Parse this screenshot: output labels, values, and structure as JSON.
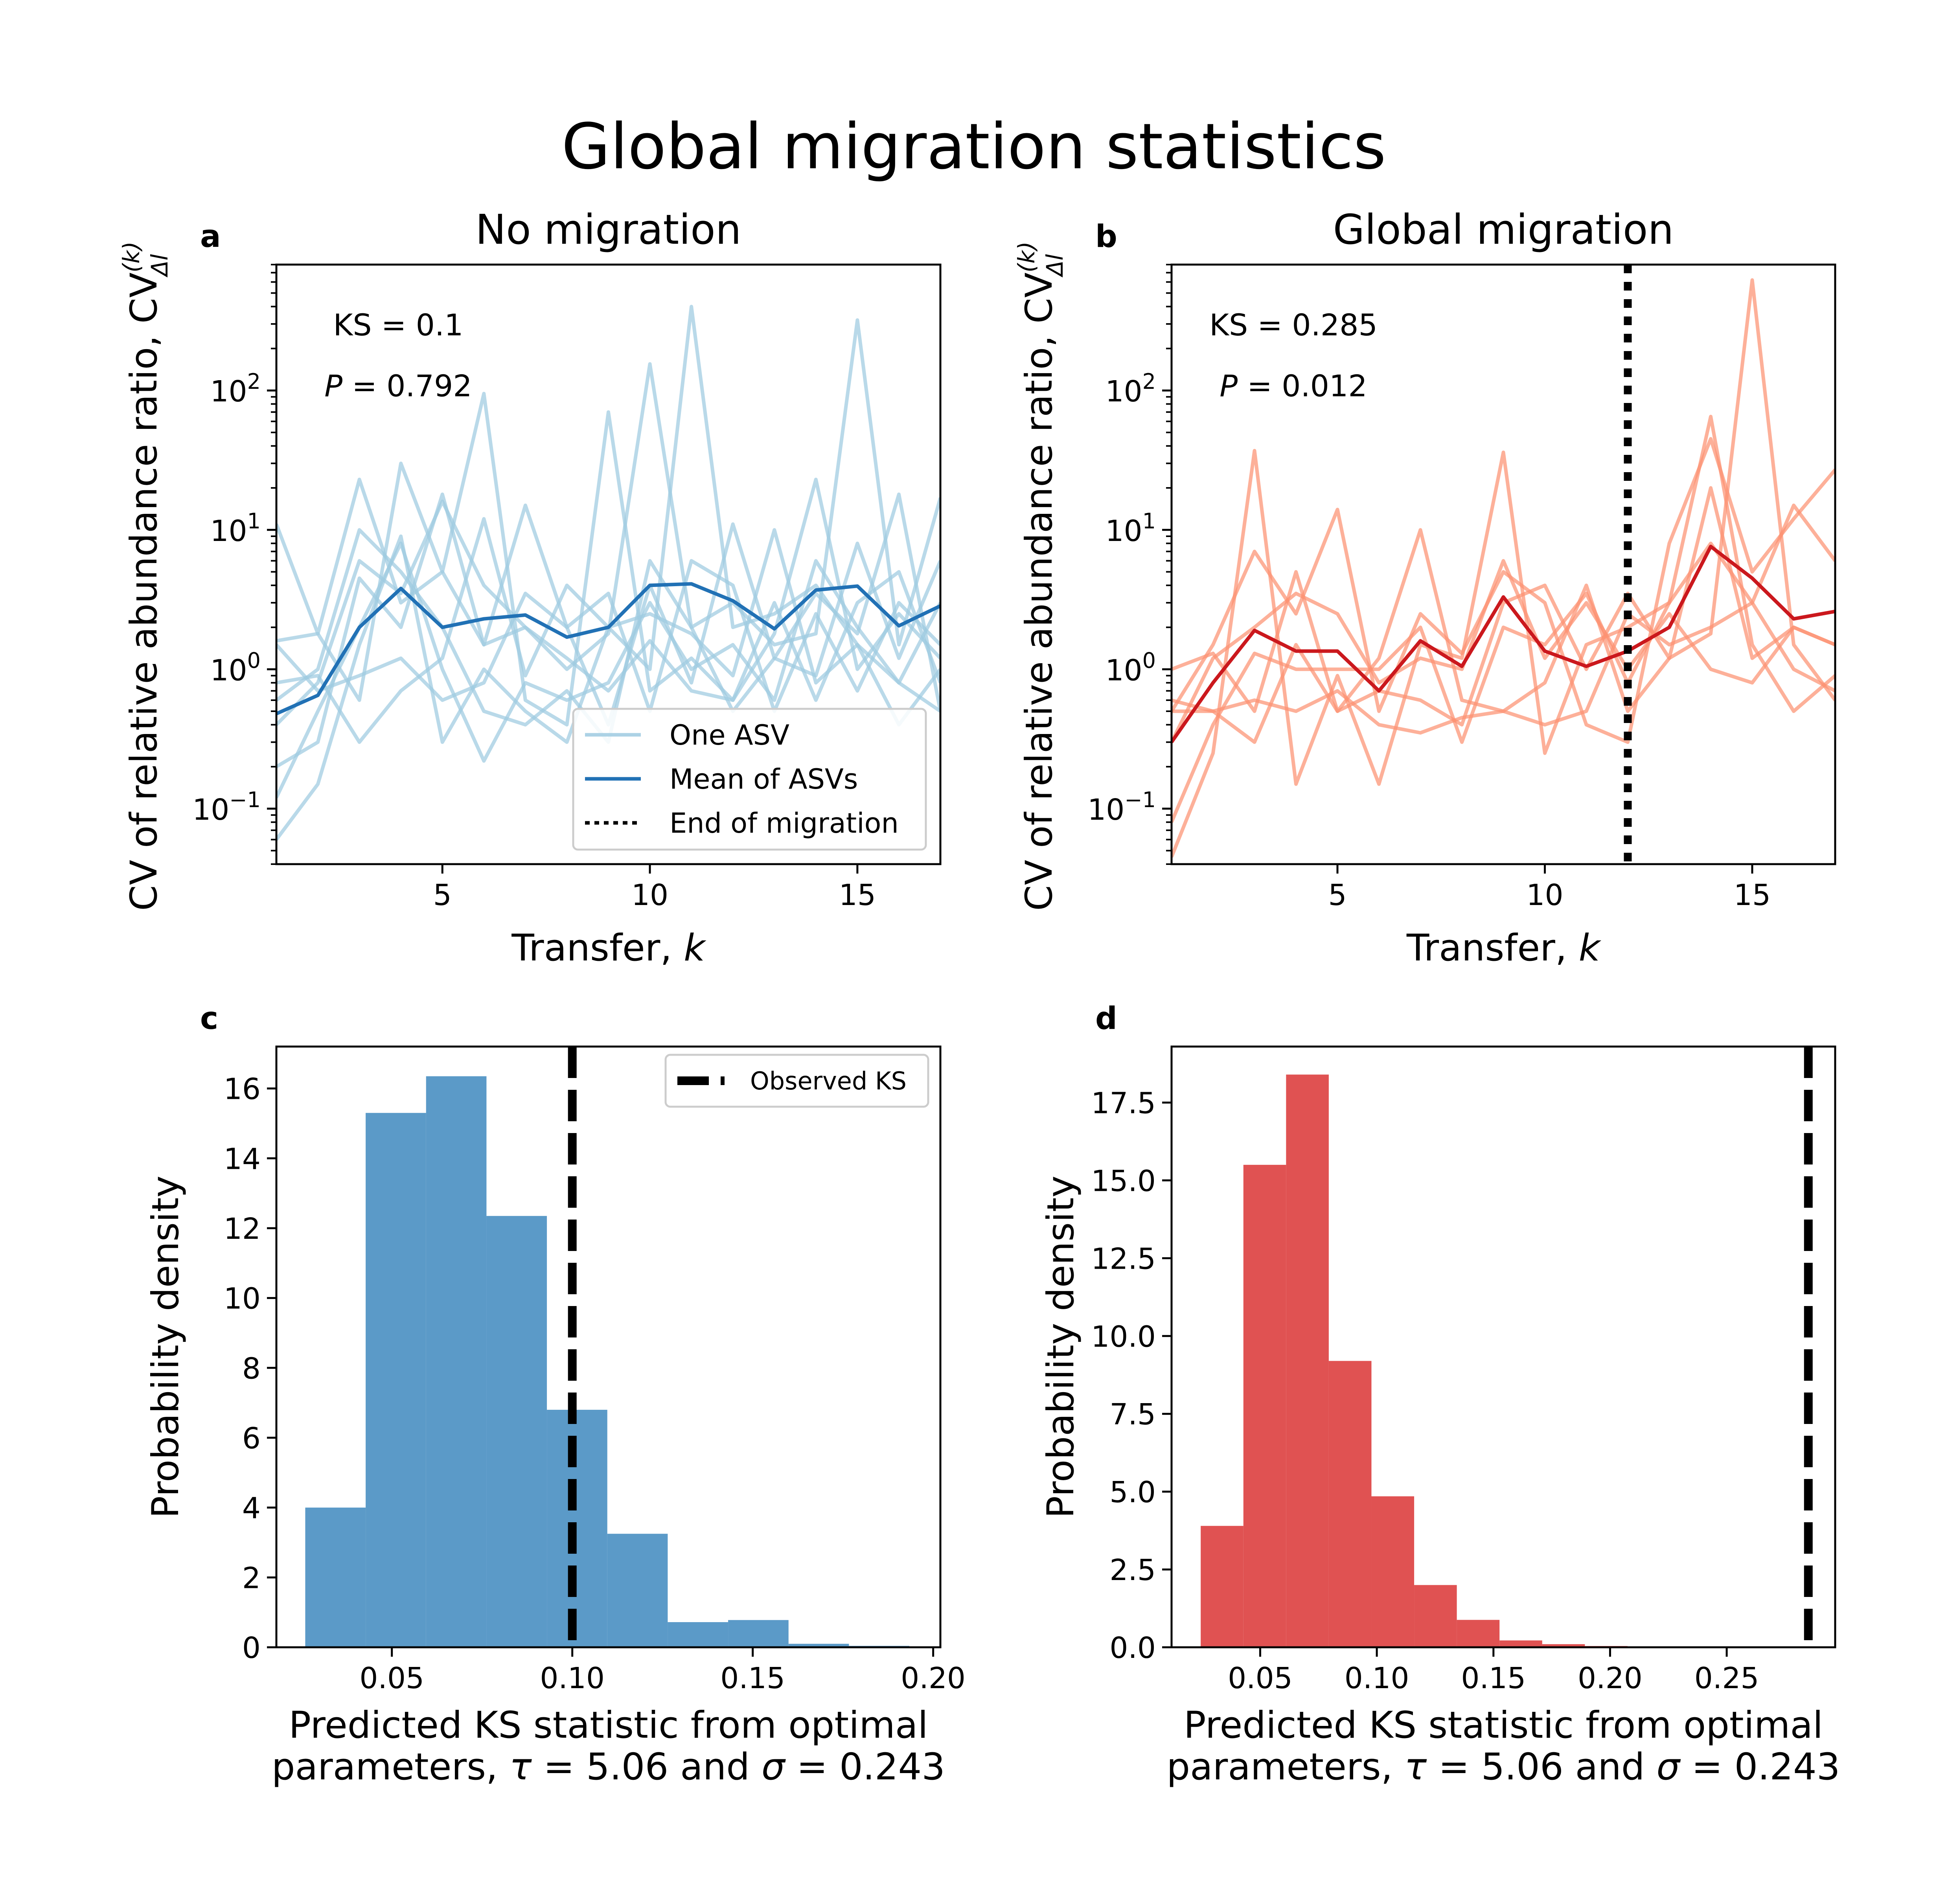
{
  "figure": {
    "title": "Global migration statistics"
  },
  "chart_data": [
    {
      "id": "a",
      "panel_label": "a",
      "type": "line",
      "title": "No migration",
      "xlabel": "Transfer, k",
      "ylabel": "CV of relative abundance ratio, CV",
      "y_scale": "log",
      "xlim": [
        1,
        17
      ],
      "ylim": [
        0.04,
        800
      ],
      "x_ticks": [
        5,
        10,
        15
      ],
      "y_ticks": [
        {
          "value": 0.1,
          "label": "10",
          "exp": "−1"
        },
        {
          "value": 1,
          "label": "10",
          "exp": "0"
        },
        {
          "value": 10,
          "label": "10",
          "exp": "1"
        },
        {
          "value": 100,
          "label": "10",
          "exp": "2"
        }
      ],
      "annotations": [
        "KS = 0.1",
        "P = 0.792"
      ],
      "colors": {
        "light": "#9ecae1",
        "dark": "#2171b5"
      },
      "x": [
        1,
        2,
        3,
        4,
        5,
        6,
        7,
        8,
        9,
        10,
        11,
        12,
        13,
        14,
        15,
        16,
        17
      ],
      "series_light": [
        [
          11,
          1.8,
          23,
          3,
          5,
          1.5,
          2,
          1,
          1.8,
          155,
          2,
          3,
          1.5,
          1.8,
          320,
          1.5,
          17
        ],
        [
          0.06,
          0.15,
          1.5,
          9,
          0.3,
          1,
          0.5,
          0.3,
          2,
          1,
          400,
          2,
          2.5,
          4,
          1.5,
          0.4,
          1
        ],
        [
          1.6,
          1.8,
          0.6,
          30,
          5,
          95,
          0.6,
          0.4,
          70,
          0.7,
          1.2,
          0.6,
          1.8,
          23,
          1,
          2.5,
          1.2
        ],
        [
          0.2,
          0.3,
          4.5,
          2,
          18,
          1.5,
          15,
          2,
          0.4,
          4,
          0.8,
          11,
          1.2,
          3.5,
          1.8,
          18,
          0.5
        ],
        [
          0.8,
          0.9,
          0.3,
          0.7,
          1.2,
          12,
          0.9,
          4,
          2,
          2.5,
          1.8,
          0.9,
          10,
          0.8,
          1.5,
          0.8,
          3
        ],
        [
          0.6,
          1,
          10,
          5,
          2,
          0.5,
          0.4,
          0.7,
          0.3,
          6,
          2,
          0.5,
          1.2,
          0.9,
          8,
          1.2,
          6
        ],
        [
          0.12,
          0.5,
          2,
          8,
          1,
          0.22,
          0.8,
          0.6,
          0.8,
          3,
          1,
          1.5,
          0.6,
          6,
          2,
          0.8,
          0.5
        ],
        [
          1.5,
          0.7,
          0.9,
          1.2,
          0.6,
          0.8,
          3.5,
          2,
          3.5,
          0.5,
          6,
          4,
          0.5,
          2.5,
          0.7,
          3,
          1.5
        ],
        [
          0.4,
          0.8,
          6,
          3.5,
          16,
          4,
          2,
          1.2,
          0.7,
          1.6,
          0.7,
          0.6,
          3,
          0.6,
          3,
          5,
          0.8
        ]
      ],
      "series_mean": {
        "name": "Mean of ASVs",
        "values": [
          0.48,
          0.65,
          2.0,
          3.8,
          2.0,
          2.3,
          2.45,
          1.7,
          2.0,
          4.0,
          4.1,
          3.1,
          1.95,
          3.7,
          3.95,
          2.05,
          2.85
        ]
      },
      "legend": {
        "position": "lower right",
        "entries": [
          "One ASV",
          "Mean of ASVs",
          "End of migration"
        ]
      }
    },
    {
      "id": "b",
      "panel_label": "b",
      "type": "line",
      "title": "Global migration",
      "xlabel": "Transfer, k",
      "ylabel": "CV of relative abundance ratio, CV",
      "y_scale": "log",
      "xlim": [
        1,
        17
      ],
      "ylim": [
        0.04,
        800
      ],
      "x_ticks": [
        5,
        10,
        15
      ],
      "y_ticks": [
        {
          "value": 0.1,
          "label": "10",
          "exp": "−1"
        },
        {
          "value": 1,
          "label": "10",
          "exp": "0"
        },
        {
          "value": 10,
          "label": "10",
          "exp": "1"
        },
        {
          "value": 100,
          "label": "10",
          "exp": "2"
        }
      ],
      "annotations": [
        "KS = 0.285",
        "P = 0.012"
      ],
      "end_of_migration_x": 12,
      "colors": {
        "light": "#fc9272",
        "dark": "#cb181d"
      },
      "x": [
        1,
        2,
        3,
        4,
        5,
        6,
        7,
        8,
        9,
        10,
        11,
        12,
        13,
        14,
        15,
        16,
        17
      ],
      "series_light": [
        [
          0.045,
          0.25,
          37,
          0.15,
          0.9,
          0.15,
          1.5,
          1.2,
          36,
          0.25,
          1.5,
          2,
          3,
          65,
          1.5,
          0.5,
          0.9
        ],
        [
          1,
          1.3,
          0.5,
          5,
          0.5,
          1.2,
          10,
          0.6,
          0.5,
          0.8,
          4,
          0.5,
          1.2,
          1.8,
          620,
          1.5,
          0.6
        ],
        [
          0.5,
          1.5,
          7,
          2.5,
          14,
          0.5,
          2.5,
          1.3,
          5,
          3,
          0.4,
          0.3,
          8,
          45,
          5,
          12,
          27
        ],
        [
          0.6,
          0.5,
          0.3,
          1.5,
          0.5,
          0.7,
          0.6,
          0.4,
          3,
          4,
          1,
          3.5,
          1.2,
          20,
          1.2,
          2,
          1.5
        ],
        [
          0.08,
          0.4,
          1.3,
          1,
          1,
          1,
          2,
          0.3,
          2,
          1.5,
          3.5,
          0.8,
          3,
          8,
          3,
          1,
          0.7
        ],
        [
          0.5,
          0.5,
          0.6,
          0.5,
          0.7,
          0.4,
          0.35,
          0.45,
          0.5,
          0.4,
          0.5,
          2.5,
          1.5,
          2,
          3,
          15,
          6
        ],
        [
          0.3,
          1.2,
          2,
          3.5,
          2.5,
          0.8,
          1.2,
          1,
          6,
          1.2,
          3,
          1,
          2.5,
          1,
          0.8,
          2,
          1.5
        ]
      ],
      "series_mean": {
        "name": "Mean of ASVs",
        "values": [
          0.3,
          0.8,
          1.9,
          1.35,
          1.35,
          0.7,
          1.6,
          1.05,
          3.3,
          1.35,
          1.05,
          1.35,
          2.0,
          7.6,
          4.5,
          2.3,
          2.6
        ]
      }
    },
    {
      "id": "c",
      "panel_label": "c",
      "type": "bar",
      "title": "",
      "xlabel_lines": [
        "Predicted KS statistic from optimal",
        "parameters, τ = 5.06 and σ = 0.243"
      ],
      "ylabel": "Probability density",
      "xlim": [
        0.018,
        0.202
      ],
      "ylim": [
        0,
        17.2
      ],
      "x_ticks": [
        {
          "value": 0.05,
          "label": "0.05"
        },
        {
          "value": 0.1,
          "label": "0.10"
        },
        {
          "value": 0.15,
          "label": "0.15"
        },
        {
          "value": 0.2,
          "label": "0.20"
        }
      ],
      "y_ticks": [
        {
          "value": 0,
          "label": "0"
        },
        {
          "value": 2,
          "label": "2"
        },
        {
          "value": 4,
          "label": "4"
        },
        {
          "value": 6,
          "label": "6"
        },
        {
          "value": 8,
          "label": "8"
        },
        {
          "value": 10,
          "label": "10"
        },
        {
          "value": 12,
          "label": "12"
        },
        {
          "value": 14,
          "label": "14"
        },
        {
          "value": 16,
          "label": "16"
        }
      ],
      "bin_width": 0.01674,
      "bin_starts": [
        0.026,
        0.04274,
        0.05948,
        0.07622,
        0.09296,
        0.1097,
        0.12644,
        0.14318,
        0.15992,
        0.17666
      ],
      "values": [
        4.0,
        15.3,
        16.35,
        12.35,
        6.8,
        3.25,
        0.72,
        0.78,
        0.1,
        0.04
      ],
      "observed_ks": 0.1,
      "color": "#5b9ac8",
      "legend": {
        "position": "upper right",
        "entries": [
          "Observed KS"
        ]
      }
    },
    {
      "id": "d",
      "panel_label": "d",
      "type": "bar",
      "title": "",
      "xlabel_lines": [
        "Predicted KS statistic from optimal",
        "parameters, τ = 5.06 and σ = 0.243"
      ],
      "ylabel": "Probability density",
      "xlim": [
        0.012,
        0.2965
      ],
      "ylim": [
        0,
        19.3
      ],
      "x_ticks": [
        {
          "value": 0.05,
          "label": "0.05"
        },
        {
          "value": 0.1,
          "label": "0.10"
        },
        {
          "value": 0.15,
          "label": "0.15"
        },
        {
          "value": 0.2,
          "label": "0.20"
        },
        {
          "value": 0.25,
          "label": "0.25"
        }
      ],
      "y_ticks": [
        {
          "value": 0,
          "label": "0.0"
        },
        {
          "value": 2.5,
          "label": "2.5"
        },
        {
          "value": 5,
          "label": "5.0"
        },
        {
          "value": 7.5,
          "label": "7.5"
        },
        {
          "value": 10,
          "label": "10.0"
        },
        {
          "value": 12.5,
          "label": "12.5"
        },
        {
          "value": 15,
          "label": "15.0"
        },
        {
          "value": 17.5,
          "label": "17.5"
        }
      ],
      "bin_width": 0.0183,
      "bin_starts": [
        0.0245,
        0.0428,
        0.0611,
        0.0794,
        0.0977,
        0.116,
        0.1343,
        0.1526,
        0.1709,
        0.1892
      ],
      "values": [
        3.9,
        15.5,
        18.4,
        9.2,
        4.85,
        2.0,
        0.88,
        0.22,
        0.1,
        0.04
      ],
      "observed_ks": 0.285,
      "color": "#e05252"
    }
  ]
}
